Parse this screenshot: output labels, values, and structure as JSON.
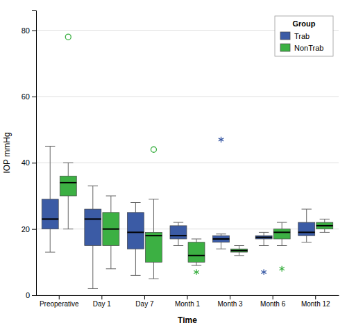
{
  "chart_data": {
    "type": "box",
    "categories": [
      "Preoperative",
      "Day 1",
      "Day 7",
      "Month 1",
      "Month 3",
      "Month 6",
      "Month 12"
    ],
    "series": [
      {
        "name": "Trab",
        "color": "#3B5BA5",
        "whisker_lo": [
          13,
          2,
          6,
          15,
          14,
          15,
          16
        ],
        "q1": [
          20,
          15,
          14,
          17,
          16,
          17,
          18
        ],
        "median": [
          23,
          23,
          19,
          18,
          17,
          17.5,
          19
        ],
        "q3": [
          29,
          26,
          25,
          21,
          18,
          18,
          22
        ],
        "whisker_hi": [
          45,
          33,
          28,
          22,
          18.5,
          19,
          26
        ],
        "outliers": [
          [],
          [],
          [],
          [],
          [],
          [],
          []
        ],
        "fliers": [
          [],
          [],
          [],
          [],
          [
            47
          ],
          [
            7
          ],
          []
        ]
      },
      {
        "name": "NonTrab",
        "color": "#3CB043",
        "whisker_lo": [
          20,
          8,
          5,
          9,
          12,
          15,
          19
        ],
        "q1": [
          30,
          15,
          10,
          10,
          13,
          17,
          20
        ],
        "median": [
          34,
          20,
          18,
          12,
          13.5,
          19,
          21
        ],
        "q3": [
          36,
          25,
          19,
          16,
          14,
          20,
          22
        ],
        "whisker_hi": [
          40,
          30,
          29,
          17,
          15,
          22,
          23
        ],
        "outliers": [
          [
            78
          ],
          [],
          [
            44
          ],
          [],
          [],
          [],
          []
        ],
        "fliers": [
          [],
          [],
          [],
          [
            7
          ],
          [],
          [
            8
          ],
          []
        ]
      }
    ],
    "ylim": [
      0,
      86
    ],
    "yticks": [
      0,
      20,
      40,
      60,
      80
    ],
    "ylabel": "IOP mmHg",
    "xlabel": "Time",
    "legend_title": "Group",
    "legend": "upper right",
    "grid": true
  }
}
